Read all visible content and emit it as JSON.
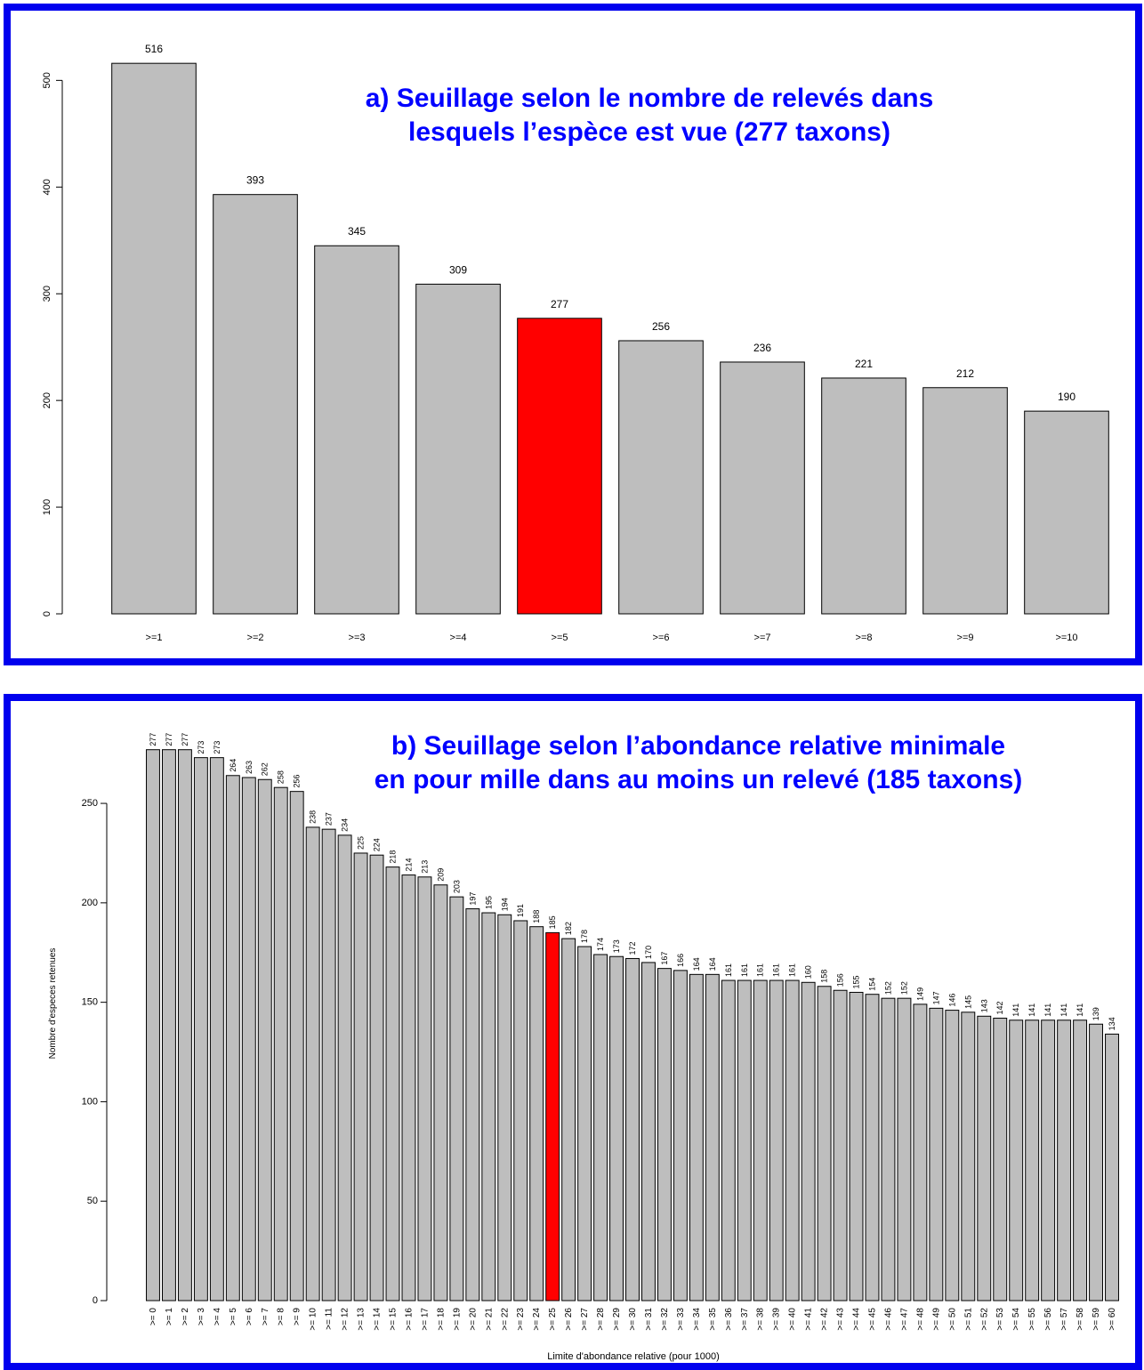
{
  "chart_data": [
    {
      "type": "bar",
      "title_lines": [
        "a) Seuillage selon le nombre de relevés dans",
        "lesquels l’espèce est vue  (277 taxons)"
      ],
      "xlabel": "",
      "ylabel": "",
      "categories": [
        ">=1",
        ">=2",
        ">=3",
        ">=4",
        ">=5",
        ">=6",
        ">=7",
        ">=8",
        ">=9",
        ">=10"
      ],
      "values": [
        516,
        393,
        345,
        309,
        277,
        256,
        236,
        221,
        212,
        190
      ],
      "data_labels": [
        "516",
        "393",
        "345",
        "309",
        "277",
        "256",
        "236",
        "221",
        "212",
        "190"
      ],
      "highlight_index": 4,
      "ylim": [
        0,
        560
      ],
      "yticks": [
        0,
        100,
        200,
        300,
        400,
        500
      ],
      "ytick_labels": [
        "0",
        "100",
        "200",
        "300",
        "400",
        "500"
      ],
      "bar_color": "#bebebe",
      "highlight_color": "#ff0000",
      "grid": false
    },
    {
      "type": "bar",
      "title_lines": [
        "b) Seuillage selon l’abondance relative minimale",
        "en pour mille dans au moins un relevé (185 taxons)"
      ],
      "xlabel": "Limite d'abondance relative (pour 1000)",
      "ylabel": "Nombre d'especes retenues",
      "categories": [
        ">= 0",
        ">= 1",
        ">= 2",
        ">= 3",
        ">= 4",
        ">= 5",
        ">= 6",
        ">= 7",
        ">= 8",
        ">= 9",
        ">= 10",
        ">= 11",
        ">= 12",
        ">= 13",
        ">= 14",
        ">= 15",
        ">= 16",
        ">= 17",
        ">= 18",
        ">= 19",
        ">= 20",
        ">= 21",
        ">= 22",
        ">= 23",
        ">= 24",
        ">= 25",
        ">= 26",
        ">= 27",
        ">= 28",
        ">= 29",
        ">= 30",
        ">= 31",
        ">= 32",
        ">= 33",
        ">= 34",
        ">= 35",
        ">= 36",
        ">= 37",
        ">= 38",
        ">= 39",
        ">= 40",
        ">= 41",
        ">= 42",
        ">= 43",
        ">= 44",
        ">= 45",
        ">= 46",
        ">= 47",
        ">= 48",
        ">= 49",
        ">= 50",
        ">= 51",
        ">= 52",
        ">= 53",
        ">= 54",
        ">= 55",
        ">= 56",
        ">= 57",
        ">= 58",
        ">= 59",
        ">= 60"
      ],
      "values": [
        277,
        277,
        277,
        273,
        273,
        264,
        263,
        262,
        258,
        256,
        238,
        237,
        234,
        225,
        224,
        218,
        214,
        213,
        209,
        203,
        197,
        195,
        194,
        191,
        188,
        185,
        182,
        178,
        174,
        173,
        172,
        170,
        167,
        166,
        164,
        164,
        161,
        161,
        161,
        161,
        161,
        160,
        158,
        156,
        155,
        154,
        152,
        152,
        149,
        147,
        146,
        145,
        143,
        142,
        141,
        141,
        141,
        141,
        141,
        139,
        134
      ],
      "data_labels": [
        "277",
        "277",
        "277",
        "273",
        "273",
        "264",
        "263",
        "262",
        "258",
        "256",
        "238",
        "237",
        "234",
        "225",
        "224",
        "218",
        "214",
        "213",
        "209",
        "203",
        "197",
        "195",
        "194",
        "191",
        "188",
        "185",
        "182",
        "178",
        "174",
        "173",
        "172",
        "170",
        "167",
        "166",
        "164",
        "164",
        "161",
        "161",
        "161",
        "161",
        "161",
        "160",
        "158",
        "156",
        "155",
        "154",
        "152",
        "152",
        "149",
        "147",
        "146",
        "145",
        "143",
        "142",
        "141",
        "141",
        "141",
        "141",
        "141",
        "139",
        "134"
      ],
      "highlight_index": 25,
      "ylim": [
        0,
        280
      ],
      "yticks": [
        0,
        50,
        100,
        150,
        200,
        250
      ],
      "ytick_labels": [
        "0",
        "50",
        "100",
        "150",
        "200",
        "250"
      ],
      "bar_color": "#bebebe",
      "highlight_color": "#ff0000",
      "grid": false
    }
  ]
}
